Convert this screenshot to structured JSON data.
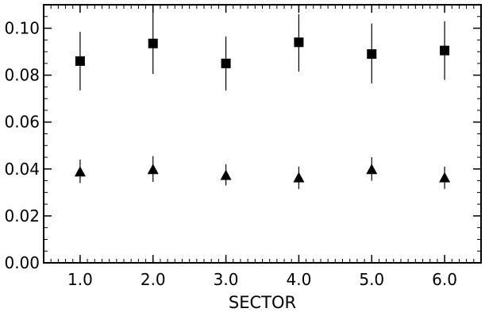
{
  "chart_data": {
    "type": "scatter",
    "title": "",
    "xlabel": "SECTOR",
    "ylabel": "",
    "xlim": [
      0.5,
      6.5
    ],
    "ylim": [
      0.0,
      0.11
    ],
    "x_ticks": [
      1,
      2,
      3,
      4,
      5,
      6
    ],
    "x_tick_labels": [
      "1.0",
      "2.0",
      "3.0",
      "4.0",
      "5.0",
      "6.0"
    ],
    "y_ticks": [
      0.0,
      0.02,
      0.04,
      0.06,
      0.08,
      0.1
    ],
    "y_tick_labels": [
      "0.00",
      "0.02",
      "0.04",
      "0.06",
      "0.08",
      "0.10"
    ],
    "grid": false,
    "legend": "none",
    "series": [
      {
        "marker": "square",
        "color": "#000000",
        "points": [
          {
            "x": 1,
            "y": 0.086,
            "err_low": 0.0735,
            "err_high": 0.0985
          },
          {
            "x": 2,
            "y": 0.0935,
            "err_low": 0.0805,
            "err_high": 0.107
          },
          {
            "x": 3,
            "y": 0.085,
            "err_low": 0.0735,
            "err_high": 0.0965
          },
          {
            "x": 4,
            "y": 0.094,
            "err_low": 0.0815,
            "err_high": 0.106
          },
          {
            "x": 5,
            "y": 0.089,
            "err_low": 0.0765,
            "err_high": 0.102
          },
          {
            "x": 6,
            "y": 0.0905,
            "err_low": 0.078,
            "err_high": 0.103
          }
        ]
      },
      {
        "marker": "triangle",
        "color": "#000000",
        "points": [
          {
            "x": 1,
            "y": 0.0385,
            "err_low": 0.034,
            "err_high": 0.044
          },
          {
            "x": 2,
            "y": 0.0395,
            "err_low": 0.0345,
            "err_high": 0.0455
          },
          {
            "x": 3,
            "y": 0.037,
            "err_low": 0.033,
            "err_high": 0.042
          },
          {
            "x": 4,
            "y": 0.036,
            "err_low": 0.0315,
            "err_high": 0.041
          },
          {
            "x": 5,
            "y": 0.0395,
            "err_low": 0.035,
            "err_high": 0.045
          },
          {
            "x": 6,
            "y": 0.036,
            "err_low": 0.0315,
            "err_high": 0.041
          }
        ]
      }
    ]
  }
}
